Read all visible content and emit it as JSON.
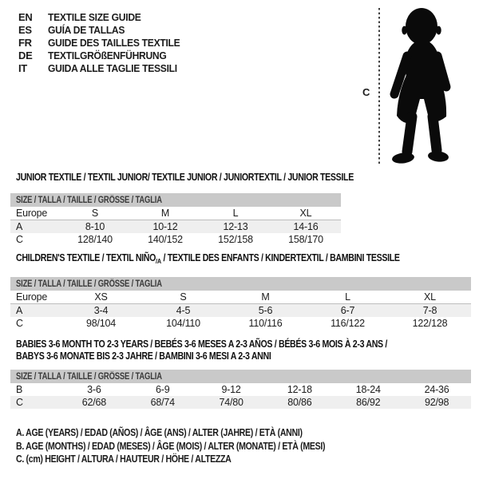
{
  "header": {
    "entries": [
      {
        "code": "EN",
        "title": "TEXTILE SIZE GUIDE"
      },
      {
        "code": "ES",
        "title": "GUÍA DE TALLAS"
      },
      {
        "code": "FR",
        "title": "GUIDE DES TAILLES TEXTILE"
      },
      {
        "code": "DE",
        "title": "TEXTILGRÖßENFÜHRUNG"
      },
      {
        "code": "IT",
        "title": "GUIDA ALLE TAGLIE TESSILI"
      }
    ]
  },
  "figure": {
    "label": "C",
    "icon": "baby-silhouette-icon"
  },
  "sections": [
    {
      "title": "JUNIOR TEXTILE / TEXTIL JUNIOR/ TEXTILE JUNIOR / JUNIORTEXTIL / JUNIOR TESSILE",
      "table": {
        "size_header": "SIZE / TALLA / TAILLE / GRÖSSE / TAGLIA",
        "rows": [
          {
            "label": "Europe",
            "cells": [
              "S",
              "M",
              "L",
              "XL"
            ]
          },
          {
            "label": "A",
            "cells": [
              "8-10",
              "10-12",
              "12-13",
              "14-16"
            ]
          },
          {
            "label": "C",
            "cells": [
              "128/140",
              "140/152",
              "152/158",
              "158/170"
            ]
          }
        ]
      }
    },
    {
      "title_pre": "CHILDREN'S TEXTILE / TEXTIL NIÑO",
      "title_sub": "/A",
      "title_post": " / TEXTILE DES ENFANTS / KINDERTEXTIL / BAMBINI TESSILE",
      "table": {
        "size_header": "SIZE / TALLA / TAILLE / GRÖSSE / TAGLIA",
        "rows": [
          {
            "label": "Europe",
            "cells": [
              "XS",
              "S",
              "M",
              "L",
              "XL"
            ]
          },
          {
            "label": "A",
            "cells": [
              "3-4",
              "4-5",
              "5-6",
              "6-7",
              "7-8"
            ]
          },
          {
            "label": "C",
            "cells": [
              "98/104",
              "104/110",
              "110/116",
              "116/122",
              "122/128"
            ]
          }
        ]
      }
    },
    {
      "title_line1": "BABIES 3-6 MONTH TO 2-3 YEARS / BEBÉS 3-6 MESES A 2-3 AÑOS / BÉBÉS 3-6 MOIS À 2-3 ANS /",
      "title_line2": "BABYS 3-6 MONATE BIS 2-3 JAHRE / BAMBINI 3-6 MESI A 2-3 ANNI",
      "table": {
        "size_header": "SIZE / TALLA / TAILLE / GRÖSSE / TAGLIA",
        "rows": [
          {
            "label": "B",
            "cells": [
              "3-6",
              "6-9",
              "9-12",
              "12-18",
              "18-24",
              "24-36"
            ]
          },
          {
            "label": "C",
            "cells": [
              "62/68",
              "68/74",
              "74/80",
              "80/86",
              "86/92",
              "92/98"
            ]
          }
        ]
      }
    }
  ],
  "notes": [
    "A. AGE (YEARS) / EDAD (AÑOS) / ÂGE (ANS) / ALTER (JAHRE) / ETÀ (ANNI)",
    "B. AGE (MONTHS) / EDAD (MESES) / ÂGE (MOIS) / ALTER (MONATE) / ETÀ (MESI)",
    "C. (cm) HEIGHT / ALTURA / HAUTEUR / HÖHE / ALTEZZA"
  ],
  "colors": {
    "header_bar": "#c9c9c9",
    "row_shaded": "#efefef",
    "row_border": "#bdbdbd",
    "text": "#1c1c1c",
    "thead_text": "#3a3a3a",
    "silhouette": "#0a0a0a"
  }
}
